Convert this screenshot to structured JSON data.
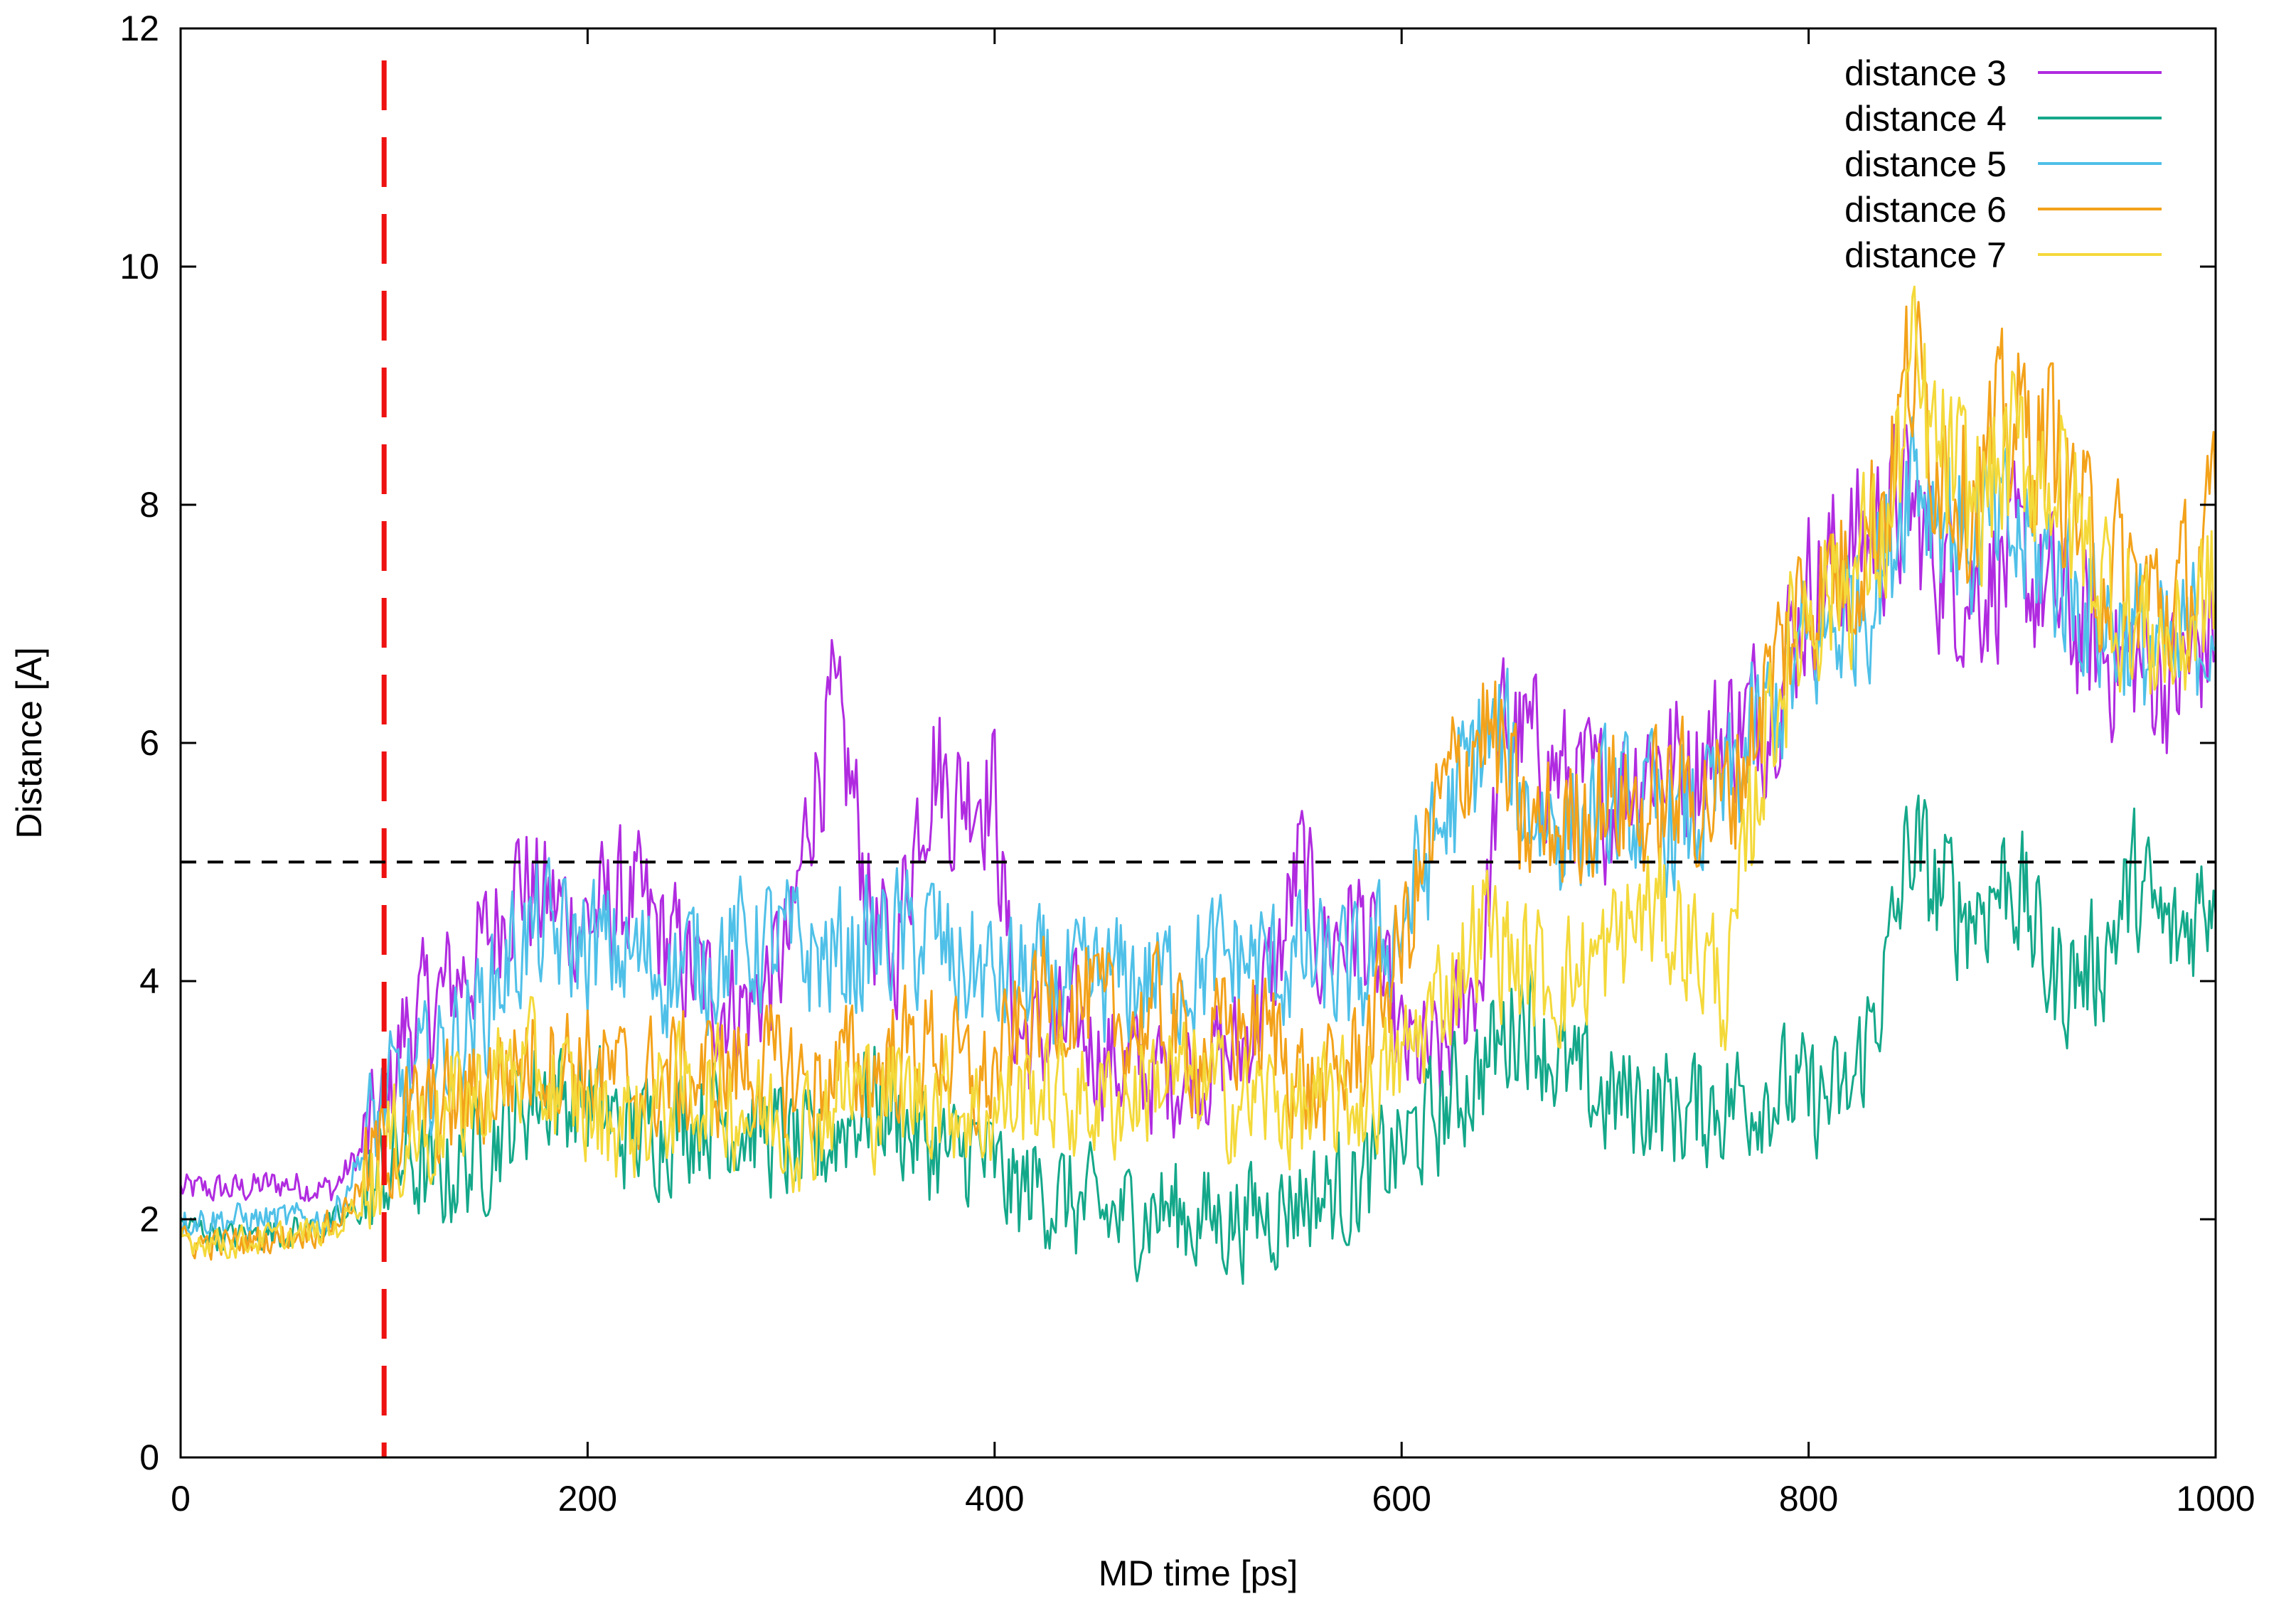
{
  "chart_data": {
    "type": "line",
    "xlabel": "MD time [ps]",
    "ylabel": "Distance [A]",
    "xlim": [
      0,
      1000
    ],
    "ylim": [
      0,
      12
    ],
    "xticks": [
      "0",
      "200",
      "400",
      "600",
      "800",
      "1000"
    ],
    "yticks": [
      "0",
      "2",
      "4",
      "6",
      "8",
      "10",
      "12"
    ],
    "grid": false,
    "legend_position": "top-right",
    "reference_lines": [
      {
        "orientation": "vertical",
        "x": 100,
        "color": "#ee1111",
        "style": "long-dash"
      },
      {
        "orientation": "horizontal",
        "y": 5,
        "color": "#000000",
        "style": "dash"
      }
    ],
    "series": [
      {
        "name": "distance 3",
        "color": "#b02be0",
        "x": [
          0,
          25,
          50,
          75,
          90,
          100,
          110,
          125,
          150,
          165,
          175,
          200,
          220,
          240,
          260,
          280,
          300,
          310,
          320,
          330,
          340,
          350,
          360,
          370,
          380,
          390,
          400,
          410,
          420,
          440,
          460,
          480,
          500,
          520,
          540,
          550,
          560,
          580,
          600,
          620,
          640,
          650,
          660,
          680,
          700,
          720,
          740,
          760,
          780,
          800,
          820,
          840,
          850,
          860,
          880,
          900,
          920,
          940,
          960,
          980,
          1000
        ],
        "y": [
          2.25,
          2.25,
          2.3,
          2.25,
          2.6,
          2.9,
          3.6,
          3.8,
          4.3,
          4.9,
          4.7,
          4.5,
          4.7,
          4.3,
          3.9,
          3.8,
          4.3,
          5.6,
          6.2,
          5.6,
          4.5,
          4.1,
          5.2,
          5.9,
          5.5,
          5.7,
          5.6,
          3.6,
          3.5,
          3.6,
          3.3,
          3.2,
          3.3,
          3.4,
          4.2,
          5.0,
          4.3,
          4.5,
          3.4,
          3.3,
          4.2,
          6.2,
          6.0,
          5.7,
          5.5,
          5.9,
          5.8,
          6.1,
          6.3,
          7.3,
          7.6,
          7.9,
          8.0,
          7.6,
          7.3,
          7.5,
          7.2,
          6.8,
          6.7,
          6.5,
          7.0
        ]
      },
      {
        "name": "distance 4",
        "color": "#14a88a",
        "x": [
          0,
          25,
          50,
          75,
          90,
          100,
          110,
          125,
          150,
          165,
          175,
          200,
          220,
          240,
          260,
          280,
          300,
          310,
          320,
          330,
          340,
          350,
          360,
          370,
          380,
          390,
          400,
          410,
          420,
          440,
          460,
          480,
          500,
          520,
          540,
          550,
          560,
          580,
          600,
          620,
          640,
          650,
          660,
          680,
          700,
          720,
          740,
          760,
          780,
          800,
          820,
          840,
          850,
          860,
          880,
          900,
          920,
          940,
          960,
          980,
          1000
        ],
        "y": [
          1.95,
          1.85,
          1.9,
          1.95,
          2.1,
          2.4,
          2.5,
          2.3,
          2.6,
          2.9,
          3.1,
          3.0,
          2.7,
          2.8,
          2.9,
          2.8,
          2.6,
          2.5,
          2.7,
          2.9,
          3.0,
          2.9,
          2.7,
          2.6,
          2.5,
          2.6,
          2.4,
          2.2,
          2.3,
          2.1,
          2.0,
          2.1,
          2.0,
          2.0,
          2.1,
          2.2,
          2.2,
          2.3,
          2.6,
          2.9,
          3.3,
          3.5,
          3.8,
          3.2,
          3.0,
          3.0,
          2.9,
          3.0,
          3.1,
          3.0,
          3.0,
          4.2,
          5.2,
          4.8,
          4.6,
          4.9,
          4.0,
          4.1,
          4.8,
          4.3,
          4.9
        ]
      },
      {
        "name": "distance 5",
        "color": "#4fc0e8",
        "x": [
          0,
          25,
          50,
          75,
          90,
          100,
          110,
          125,
          150,
          165,
          175,
          200,
          220,
          240,
          260,
          280,
          300,
          310,
          320,
          330,
          340,
          350,
          360,
          370,
          380,
          390,
          400,
          410,
          420,
          440,
          460,
          480,
          500,
          520,
          540,
          550,
          560,
          580,
          600,
          620,
          640,
          650,
          660,
          680,
          700,
          720,
          740,
          760,
          780,
          800,
          820,
          840,
          850,
          860,
          880,
          900,
          920,
          940,
          960,
          980,
          1000
        ],
        "y": [
          2.0,
          2.0,
          2.0,
          2.0,
          2.6,
          3.0,
          3.1,
          3.3,
          3.8,
          4.3,
          4.4,
          4.3,
          4.2,
          4.1,
          4.2,
          4.3,
          4.3,
          4.2,
          4.2,
          4.2,
          4.3,
          4.4,
          4.3,
          4.4,
          4.1,
          4.1,
          4.0,
          4.0,
          4.0,
          3.9,
          4.0,
          4.0,
          4.1,
          4.2,
          4.1,
          4.2,
          4.1,
          4.0,
          4.5,
          5.3,
          6.0,
          6.0,
          5.5,
          5.3,
          5.4,
          5.4,
          5.3,
          5.6,
          6.2,
          6.8,
          7.1,
          7.6,
          8.5,
          8.1,
          7.7,
          7.7,
          7.5,
          7.1,
          6.9,
          6.6,
          7.2
        ]
      },
      {
        "name": "distance 6",
        "color": "#f3a21a",
        "x": [
          0,
          25,
          50,
          75,
          90,
          100,
          110,
          125,
          150,
          165,
          175,
          200,
          220,
          240,
          260,
          280,
          300,
          310,
          320,
          330,
          340,
          350,
          360,
          370,
          380,
          390,
          400,
          410,
          420,
          440,
          460,
          480,
          500,
          520,
          540,
          550,
          560,
          580,
          600,
          620,
          640,
          650,
          660,
          680,
          700,
          720,
          740,
          760,
          780,
          800,
          820,
          840,
          850,
          860,
          880,
          900,
          920,
          940,
          960,
          980,
          1000
        ],
        "y": [
          1.8,
          1.8,
          1.85,
          1.95,
          2.3,
          2.6,
          2.8,
          2.9,
          3.1,
          3.3,
          3.4,
          3.3,
          3.1,
          3.2,
          3.2,
          3.3,
          3.2,
          3.1,
          3.2,
          3.3,
          3.2,
          3.4,
          3.4,
          3.5,
          3.3,
          3.1,
          3.2,
          3.5,
          3.8,
          3.9,
          3.6,
          3.7,
          3.4,
          3.6,
          3.5,
          3.2,
          3.0,
          3.4,
          4.3,
          5.5,
          6.2,
          5.8,
          5.2,
          5.3,
          5.6,
          5.4,
          5.6,
          5.5,
          6.5,
          7.3,
          7.5,
          8.2,
          9.2,
          8.6,
          8.1,
          8.7,
          8.5,
          7.6,
          7.3,
          7.1,
          7.8
        ]
      },
      {
        "name": "distance 7",
        "color": "#f4d93a",
        "x": [
          0,
          25,
          50,
          75,
          90,
          100,
          110,
          125,
          150,
          165,
          175,
          200,
          220,
          240,
          260,
          280,
          300,
          310,
          320,
          330,
          340,
          350,
          360,
          370,
          380,
          390,
          400,
          410,
          420,
          440,
          460,
          480,
          500,
          520,
          540,
          550,
          560,
          580,
          600,
          620,
          640,
          650,
          660,
          680,
          700,
          720,
          740,
          760,
          780,
          800,
          820,
          840,
          850,
          860,
          880,
          900,
          920,
          940,
          960,
          980,
          1000
        ],
        "y": [
          1.85,
          1.8,
          1.85,
          1.9,
          2.2,
          2.5,
          2.7,
          2.8,
          3.1,
          3.3,
          3.2,
          2.9,
          2.8,
          3.0,
          3.1,
          2.9,
          2.8,
          2.8,
          3.0,
          3.1,
          3.0,
          3.1,
          3.0,
          3.1,
          3.0,
          2.9,
          2.9,
          3.0,
          3.1,
          3.0,
          3.0,
          3.2,
          3.1,
          3.0,
          3.0,
          2.9,
          2.9,
          3.0,
          3.3,
          3.9,
          4.5,
          4.3,
          4.1,
          4.0,
          4.2,
          4.6,
          4.4,
          3.9,
          6.2,
          7.2,
          7.4,
          7.8,
          9.1,
          8.5,
          8.0,
          8.4,
          8.3,
          7.5,
          7.0,
          6.8,
          7.3
        ]
      }
    ]
  }
}
